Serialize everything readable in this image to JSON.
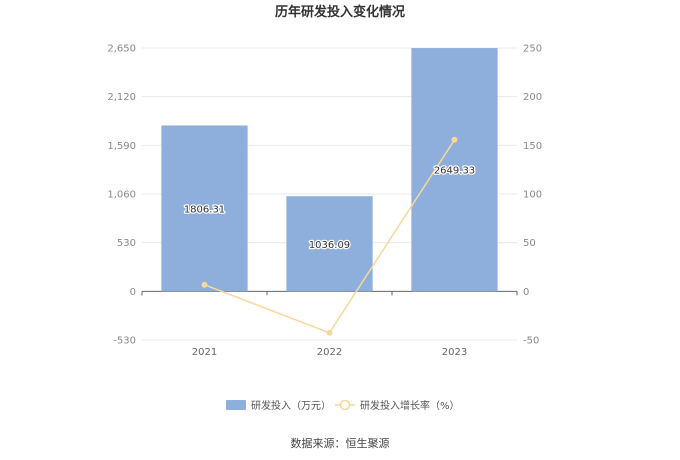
{
  "chart_data": {
    "type": "bar",
    "title": "历年研发投入变化情况",
    "categories": [
      "2021",
      "2022",
      "2023"
    ],
    "series": [
      {
        "name": "研发投入（万元）",
        "type": "bar",
        "axis": "left",
        "values": [
          1806.31,
          1036.09,
          2649.33
        ],
        "labels": [
          "1806.31",
          "1036.09",
          "2649.33"
        ],
        "color": "#8eaedb"
      },
      {
        "name": "研发投入增长率（%）",
        "type": "line",
        "axis": "right",
        "values": [
          6.7,
          -42.6,
          155.7
        ],
        "color": "#f8d79b"
      }
    ],
    "y_left": {
      "ticks": [
        -530,
        0,
        530,
        1060,
        1590,
        2120,
        2650
      ],
      "tick_labels": [
        "-530",
        "0",
        "530",
        "1,060",
        "1,590",
        "2,120",
        "2,650"
      ],
      "ylim": [
        -530,
        2650
      ]
    },
    "y_right": {
      "ticks": [
        -50,
        0,
        50,
        100,
        150,
        200,
        250
      ],
      "tick_labels": [
        "-50",
        "0",
        "50",
        "100",
        "150",
        "200",
        "250"
      ],
      "ylim": [
        -50,
        250
      ]
    },
    "grid": true,
    "legend_position": "bottom"
  },
  "source": "数据来源：恒生聚源"
}
